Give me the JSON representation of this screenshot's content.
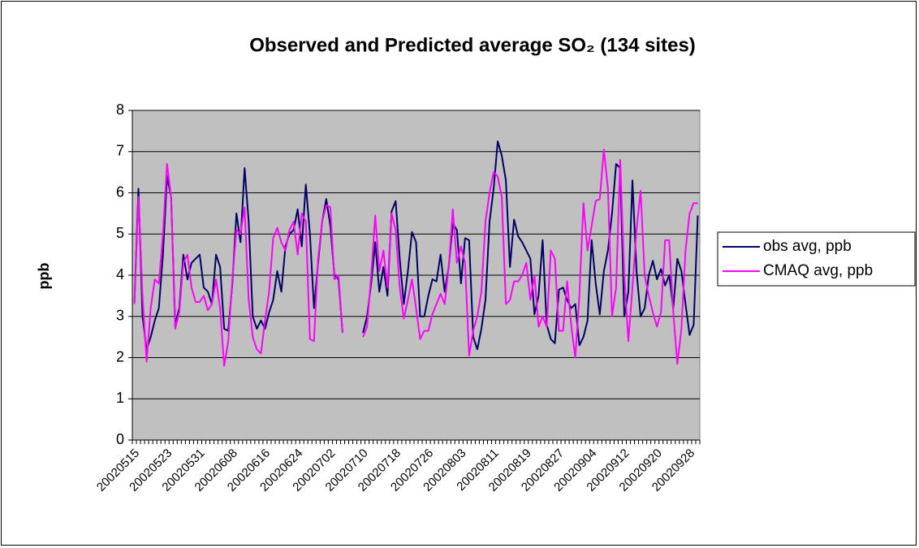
{
  "chart_data": {
    "type": "line",
    "title": "Observed and Predicted average SO₂ (134 sites)",
    "y_label": "ppb",
    "categories": [
      "20020515",
      null,
      null,
      null,
      null,
      null,
      null,
      null,
      "20020523",
      null,
      null,
      null,
      null,
      null,
      null,
      null,
      "20020531",
      null,
      null,
      null,
      null,
      null,
      null,
      null,
      "20020608",
      null,
      null,
      null,
      null,
      null,
      null,
      null,
      "20020616",
      null,
      null,
      null,
      null,
      null,
      null,
      null,
      "20020624",
      null,
      null,
      null,
      null,
      null,
      null,
      null,
      "20020702",
      null,
      null,
      null,
      null,
      null,
      null,
      null,
      "20020710",
      null,
      null,
      null,
      null,
      null,
      null,
      null,
      "20020718",
      null,
      null,
      null,
      null,
      null,
      null,
      null,
      "20020726",
      null,
      null,
      null,
      null,
      null,
      null,
      null,
      "20020803",
      null,
      null,
      null,
      null,
      null,
      null,
      null,
      "20020811",
      null,
      null,
      null,
      null,
      null,
      null,
      null,
      "20020819",
      null,
      null,
      null,
      null,
      null,
      null,
      null,
      "20020827",
      null,
      null,
      null,
      null,
      null,
      null,
      null,
      "20020904",
      null,
      null,
      null,
      null,
      null,
      null,
      null,
      "20020912",
      null,
      null,
      null,
      null,
      null,
      null,
      null,
      "20020920",
      null,
      null,
      null,
      null,
      null,
      null,
      null,
      "20020928",
      null,
      null
    ],
    "series": [
      {
        "name": "obs avg, ppb",
        "color": "#000066",
        "values": [
          3.3,
          6.1,
          3.0,
          2.2,
          2.5,
          2.9,
          3.2,
          4.5,
          6.4,
          5.9,
          2.8,
          3.2,
          4.5,
          3.9,
          4.3,
          4.4,
          4.5,
          3.7,
          3.6,
          3.3,
          4.5,
          4.2,
          2.7,
          2.65,
          3.8,
          5.5,
          4.8,
          6.6,
          5.3,
          3.0,
          2.7,
          2.9,
          2.7,
          3.1,
          3.4,
          4.1,
          3.6,
          4.7,
          5.0,
          5.1,
          5.6,
          4.7,
          6.2,
          5.0,
          3.2,
          4.3,
          5.3,
          5.85,
          5.2,
          4.0,
          3.9,
          2.6,
          null,
          null,
          null,
          null,
          2.6,
          3.0,
          3.8,
          4.8,
          3.6,
          4.2,
          3.5,
          5.55,
          5.8,
          4.4,
          3.3,
          4.1,
          5.05,
          4.8,
          3.0,
          3.0,
          3.5,
          3.9,
          3.85,
          4.5,
          3.6,
          4.2,
          5.25,
          5.1,
          3.8,
          4.9,
          4.85,
          2.5,
          2.2,
          2.7,
          3.4,
          5.3,
          6.1,
          7.25,
          6.9,
          6.3,
          4.2,
          5.35,
          4.95,
          4.8,
          4.6,
          4.4,
          3.05,
          3.5,
          4.85,
          2.8,
          2.45,
          2.35,
          3.65,
          3.7,
          3.4,
          3.2,
          3.3,
          2.3,
          2.5,
          2.9,
          4.85,
          3.8,
          3.05,
          4.1,
          4.6,
          5.5,
          6.7,
          6.6,
          3.0,
          3.6,
          6.3,
          4.1,
          3.0,
          3.2,
          4.0,
          4.35,
          3.9,
          4.15,
          3.75,
          4.0,
          3.2,
          4.4,
          4.1,
          3.3,
          2.55,
          2.8,
          5.45
        ]
      },
      {
        "name": "CMAQ avg, ppb",
        "color": "#ff00ff",
        "values": [
          3.3,
          5.9,
          3.5,
          1.9,
          3.2,
          3.9,
          3.8,
          5.0,
          6.7,
          5.9,
          2.7,
          3.1,
          4.3,
          4.5,
          3.7,
          3.35,
          3.35,
          3.5,
          3.15,
          3.3,
          3.9,
          3.2,
          1.8,
          2.4,
          3.9,
          5.1,
          5.0,
          5.65,
          3.4,
          2.5,
          2.2,
          2.1,
          2.9,
          3.6,
          4.9,
          5.15,
          4.8,
          4.6,
          5.1,
          5.3,
          4.5,
          5.5,
          5.3,
          2.45,
          2.4,
          4.4,
          5.3,
          5.7,
          5.65,
          3.9,
          4.0,
          2.6,
          null,
          null,
          null,
          null,
          2.5,
          2.75,
          4.0,
          5.45,
          4.1,
          4.6,
          3.7,
          5.5,
          5.1,
          3.7,
          2.95,
          3.4,
          3.9,
          3.2,
          2.45,
          2.65,
          2.65,
          3.05,
          3.3,
          3.55,
          3.3,
          4.2,
          5.6,
          4.3,
          4.7,
          4.3,
          2.05,
          2.65,
          3.0,
          3.6,
          5.3,
          6.0,
          6.5,
          6.4,
          5.9,
          3.3,
          3.4,
          3.85,
          3.85,
          4.0,
          4.3,
          3.4,
          4.0,
          2.75,
          3.0,
          2.75,
          4.6,
          4.4,
          2.65,
          2.65,
          3.85,
          2.8,
          2.0,
          3.5,
          5.75,
          4.6,
          5.2,
          5.8,
          5.85,
          7.05,
          6.1,
          3.0,
          3.7,
          6.8,
          4.0,
          2.4,
          3.7,
          5.1,
          6.05,
          4.0,
          3.5,
          3.1,
          2.75,
          3.1,
          4.85,
          4.85,
          3.1,
          1.85,
          2.7,
          4.6,
          5.5,
          5.75,
          5.75
        ]
      }
    ],
    "ylim": [
      0,
      8
    ],
    "yticks": [
      0,
      1,
      2,
      3,
      4,
      5,
      6,
      7,
      8
    ],
    "grid": true,
    "plot_background": "#c0c0c0",
    "legend": "right"
  }
}
